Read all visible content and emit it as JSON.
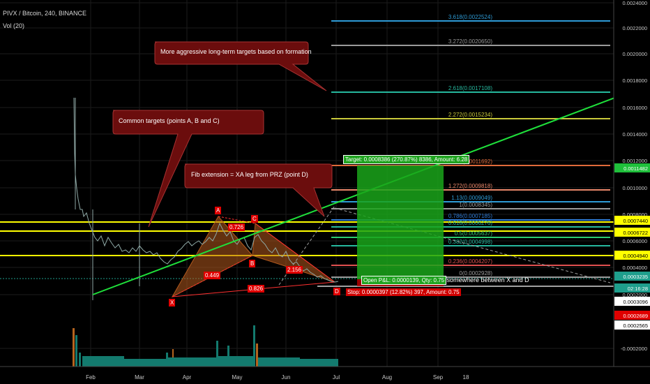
{
  "header": {
    "symbol": "PIVX / Bitcoin, 240, BINANCE",
    "indicator": "Vol (20)"
  },
  "time_axis": [
    "Feb",
    "Mar",
    "Apr",
    "May",
    "Jun",
    "Jul",
    "Aug",
    "Sep",
    "18"
  ],
  "price_axis": [
    "0.0024000",
    "0.0022000",
    "0.0020000",
    "0.0018000",
    "0.0016000",
    "0.0014000",
    "0.0012000",
    "0.0010000",
    "0.0008000",
    "0.0006000",
    "0.0004000",
    "0.0002000",
    "-0.0002000"
  ],
  "price_labels": [
    {
      "text": "0.0011482",
      "color": "#1fbf3b"
    },
    {
      "text": "0.0007440",
      "color": "#ffff00"
    },
    {
      "text": "0.0006722",
      "color": "#ffff00"
    },
    {
      "text": "0.0004940",
      "color": "#ffff00"
    },
    {
      "text": "0.0003235",
      "color": "#1e9e8c"
    },
    {
      "text": "02:16:28",
      "color": "#1e9e8c"
    },
    {
      "text": "0.0003096",
      "color": "#ffffff"
    },
    {
      "text": "0.0002689",
      "color": "#e00000"
    },
    {
      "text": "0.0002565",
      "color": "#ffffff"
    }
  ],
  "fib_levels": [
    {
      "label": "3.618(0.0022524)",
      "color": "#2e9bd6"
    },
    {
      "label": "3.272(0.0020650)",
      "color": "#9a9a9a"
    },
    {
      "label": "2.618(0.0017108)",
      "color": "#26b89e"
    },
    {
      "label": "2.272(0.0015234)",
      "color": "#c9c93a"
    },
    {
      "label": "1.618(0.0011692)",
      "color": "#e06a3a"
    },
    {
      "label": "1.272(0.0009818)",
      "color": "#e9876a"
    },
    {
      "label": "1.13(0.0009049)",
      "color": "#2e9bd6"
    },
    {
      "label": "1(0.0008345)",
      "color": "#9a9a9a"
    },
    {
      "label": "0.786(0.0007185)",
      "color": "#2e7bd6"
    },
    {
      "label": "0.618(0.0006276)",
      "color": "#26b89e"
    },
    {
      "label": "0.5(0.0005637)",
      "color": "#2ecc71"
    },
    {
      "label": "0.382(0.0004998)",
      "color": "#26b89e"
    },
    {
      "label": "0.236(0.0004207)",
      "color": "#e05050"
    },
    {
      "label": "0(0.0002928)",
      "color": "#9a9a9a"
    }
  ],
  "callouts": {
    "aggressive": "More aggressive long-term targets based on formation",
    "common": "Common targets (points A, B and C)",
    "fib_ext": "Fib extension = XA leg from PRZ (point D)",
    "stop_note": "Stop Loss somewhere between X and D"
  },
  "pattern": {
    "points": [
      "X",
      "A",
      "B",
      "C",
      "D"
    ],
    "ratios": [
      "0.449",
      "0.726",
      "2.156",
      "0.826"
    ]
  },
  "position": {
    "target": "Target: 0.0008386 (270.87%) 8386, Amount: 6.28",
    "open_pl": "Open P&L: 0.0000139, Qty: 0.75",
    "stop": "Stop: 0.0000397 (12.82%) 397, Amount: 0.75"
  },
  "colors": {
    "bullish": "#1fbf3b",
    "bearish": "#c00000",
    "band": "#ffff00",
    "harmonic": "#b45a1e"
  }
}
